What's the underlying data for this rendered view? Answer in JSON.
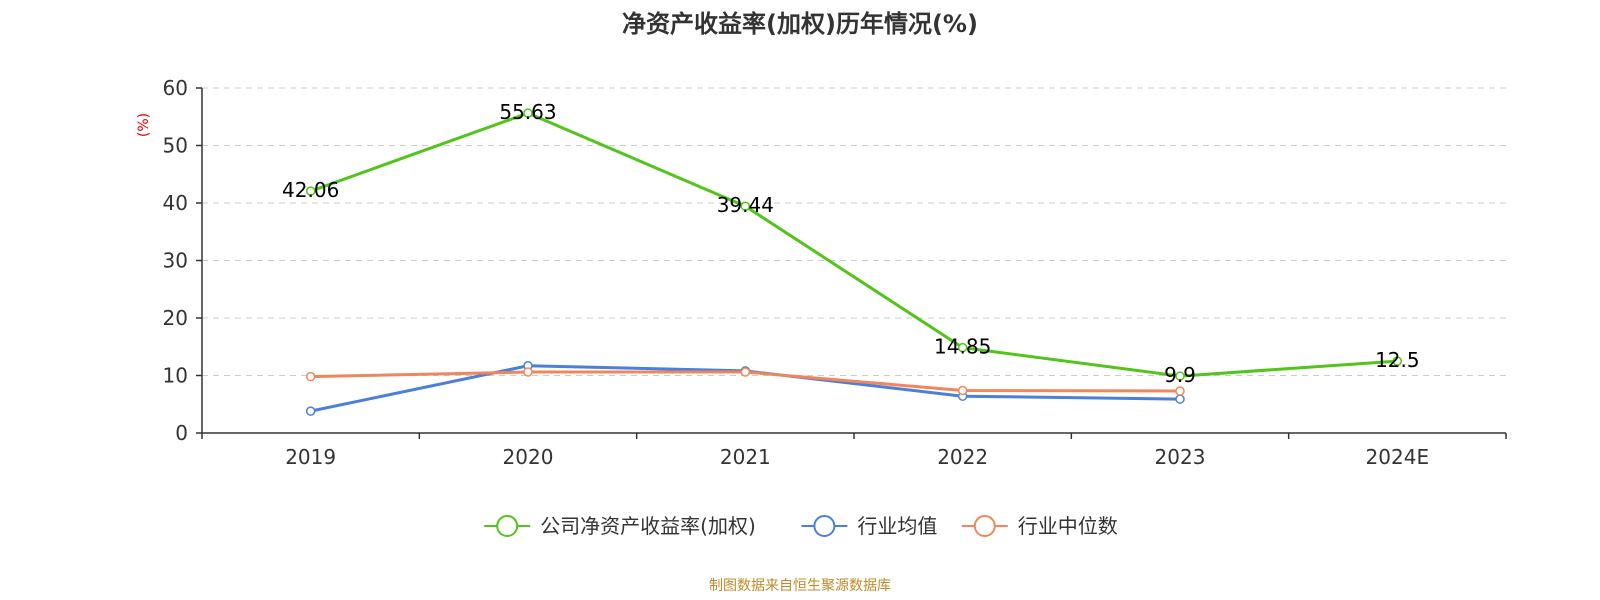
{
  "chart_data": {
    "type": "line",
    "title": "净资产收益率(加权)历年情况(%)",
    "ylabel": "(%)",
    "xlabel": "",
    "categories": [
      "2019",
      "2020",
      "2021",
      "2022",
      "2023",
      "2024E"
    ],
    "ylim": [
      0,
      60
    ],
    "yticks": [
      0,
      10,
      20,
      30,
      40,
      50,
      60
    ],
    "grid": "horizontal dashed",
    "legend_position": "bottom",
    "series": [
      {
        "name": "公司净资产收益率(加权)",
        "color": "#52c41a",
        "values": [
          42.06,
          55.63,
          39.44,
          14.85,
          9.9,
          12.5
        ],
        "labels": [
          "42.06",
          "55.63",
          "39.44",
          "14.85",
          "9.9",
          "12.5"
        ]
      },
      {
        "name": "行业均值",
        "color": "#4a7fdc",
        "values": [
          3.8,
          11.7,
          10.8,
          6.4,
          5.9,
          null
        ]
      },
      {
        "name": "行业中位数",
        "color": "#f0875a",
        "values": [
          9.8,
          10.6,
          10.6,
          7.4,
          7.3,
          null
        ]
      }
    ],
    "source": "制图数据来自恒生聚源数据库"
  }
}
